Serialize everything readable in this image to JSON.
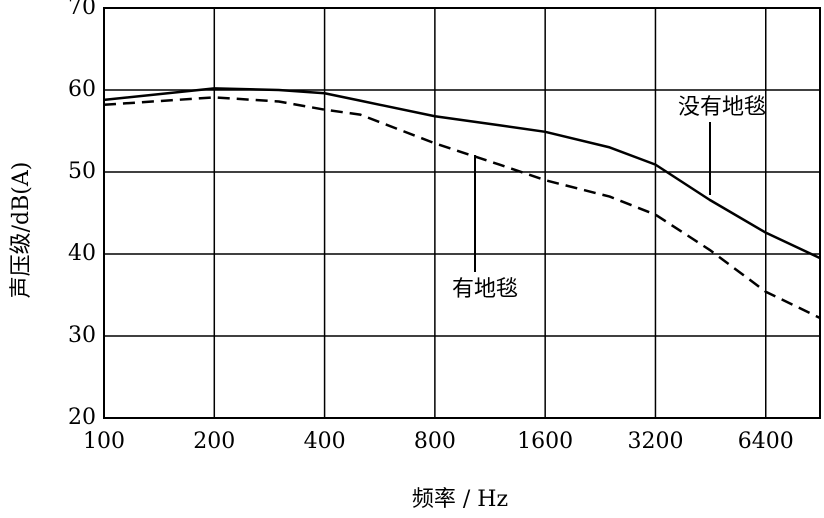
{
  "chart_data": {
    "type": "line",
    "xlabel": "频率 / Hz",
    "ylabel": "声压级/dB(A)",
    "x": [
      100,
      200,
      300,
      400,
      500,
      800,
      1200,
      1600,
      2400,
      3200,
      4500,
      6400,
      9000
    ],
    "xscale": "log",
    "series": [
      {
        "name": "没有地毯",
        "color": "#000000",
        "dash": false,
        "values": [
          58.8,
          60.2,
          60,
          59.6,
          58.7,
          56.8,
          55.7,
          54.9,
          53,
          50.9,
          46.6,
          42.6,
          39.5
        ]
      },
      {
        "name": "有地毯",
        "color": "#000000",
        "dash": true,
        "values": [
          58.2,
          59.1,
          58.6,
          57.6,
          57,
          53.5,
          50.9,
          49,
          47,
          44.8,
          40.5,
          35.4,
          32.2
        ]
      }
    ],
    "xlim": [
      100,
      9000
    ],
    "xticks": [
      100,
      200,
      400,
      800,
      1600,
      3200,
      6400
    ],
    "ylim": [
      20,
      70
    ],
    "yticks": [
      20,
      30,
      40,
      50,
      60,
      70
    ],
    "grid": true
  }
}
